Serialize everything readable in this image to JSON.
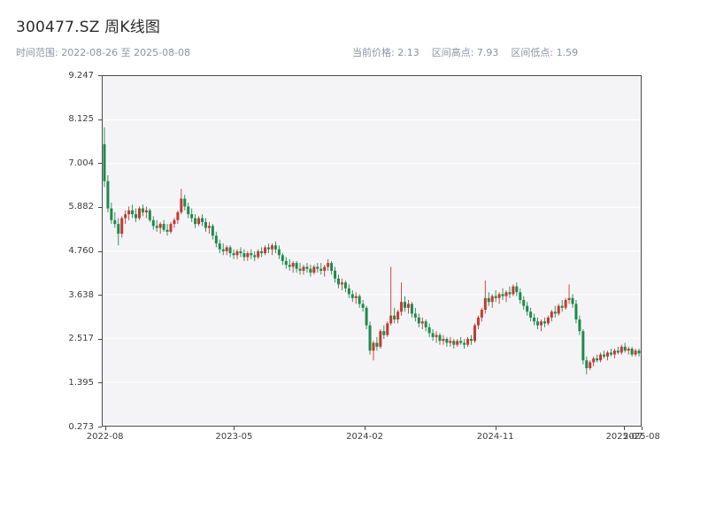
{
  "header": {
    "title": "300477.SZ 周K线图",
    "time_range": "时间范围: 2022-08-26 至 2025-08-08",
    "current_price": "当前价格: 2.13",
    "range_high": "区间高点: 7.93",
    "range_low": "区间低点: 1.59"
  },
  "chart_data": {
    "type": "candlestick",
    "symbol": "300477.SZ",
    "interval": "weekly",
    "title": "300477.SZ 周K线图",
    "date_start": "2022-08-26",
    "date_end": "2025-08-08",
    "current_price": 2.13,
    "range_high": 7.93,
    "range_low": 1.59,
    "y_min": 0.273,
    "y_max": 9.247,
    "up_color": "#c23a32",
    "down_color": "#1f8a4c",
    "background": "#f4f4f6",
    "grid_color": "#ffffff",
    "grid": "horizontal-only",
    "y_ticks": [
      {
        "label": "9.247",
        "value": 9.247
      },
      {
        "label": "8.125",
        "value": 8.125
      },
      {
        "label": "7.004",
        "value": 7.004
      },
      {
        "label": "5.882",
        "value": 5.882
      },
      {
        "label": "4.760",
        "value": 4.76
      },
      {
        "label": "3.638",
        "value": 3.638
      },
      {
        "label": "2.517",
        "value": 2.517
      },
      {
        "label": "1.395",
        "value": 1.395
      },
      {
        "label": "0.273",
        "value": 0.273
      }
    ],
    "x_ticks": [
      {
        "label": "2022-08",
        "pos": 0.006
      },
      {
        "label": "2023-05",
        "pos": 0.245
      },
      {
        "label": "2024-02",
        "pos": 0.487
      },
      {
        "label": "2024-11",
        "pos": 0.729
      },
      {
        "label": "2025-07",
        "pos": 0.968
      },
      {
        "label": "2025-08",
        "pos": 1.0
      }
    ],
    "ohlc_order": [
      "open",
      "high",
      "low",
      "close"
    ],
    "candles": [
      [
        7.5,
        7.93,
        6.4,
        6.55
      ],
      [
        6.55,
        6.7,
        5.75,
        5.85
      ],
      [
        5.85,
        6.0,
        5.45,
        5.55
      ],
      [
        5.55,
        5.75,
        5.35,
        5.45
      ],
      [
        5.45,
        5.6,
        4.9,
        5.2
      ],
      [
        5.2,
        5.65,
        5.1,
        5.6
      ],
      [
        5.6,
        5.8,
        5.45,
        5.7
      ],
      [
        5.7,
        5.9,
        5.55,
        5.8
      ],
      [
        5.8,
        5.95,
        5.6,
        5.7
      ],
      [
        5.7,
        5.85,
        5.5,
        5.6
      ],
      [
        5.6,
        5.9,
        5.55,
        5.85
      ],
      [
        5.85,
        5.95,
        5.65,
        5.75
      ],
      [
        5.75,
        5.9,
        5.6,
        5.8
      ],
      [
        5.8,
        5.85,
        5.5,
        5.55
      ],
      [
        5.55,
        5.65,
        5.3,
        5.4
      ],
      [
        5.4,
        5.55,
        5.25,
        5.35
      ],
      [
        5.35,
        5.5,
        5.2,
        5.45
      ],
      [
        5.45,
        5.55,
        5.25,
        5.3
      ],
      [
        5.3,
        5.45,
        5.15,
        5.25
      ],
      [
        5.25,
        5.5,
        5.2,
        5.45
      ],
      [
        5.45,
        5.6,
        5.35,
        5.55
      ],
      [
        5.55,
        5.8,
        5.45,
        5.75
      ],
      [
        5.75,
        6.35,
        5.7,
        6.1
      ],
      [
        6.1,
        6.2,
        5.8,
        5.9
      ],
      [
        5.9,
        6.0,
        5.6,
        5.7
      ],
      [
        5.7,
        5.85,
        5.5,
        5.6
      ],
      [
        5.6,
        5.7,
        5.35,
        5.45
      ],
      [
        5.45,
        5.65,
        5.4,
        5.6
      ],
      [
        5.6,
        5.7,
        5.4,
        5.5
      ],
      [
        5.5,
        5.6,
        5.25,
        5.35
      ],
      [
        5.35,
        5.5,
        5.2,
        5.4
      ],
      [
        5.4,
        5.45,
        5.05,
        5.15
      ],
      [
        5.15,
        5.25,
        4.85,
        4.95
      ],
      [
        4.95,
        5.05,
        4.7,
        4.8
      ],
      [
        4.8,
        4.95,
        4.65,
        4.75
      ],
      [
        4.75,
        4.9,
        4.65,
        4.85
      ],
      [
        4.85,
        4.9,
        4.6,
        4.7
      ],
      [
        4.7,
        4.8,
        4.55,
        4.65
      ],
      [
        4.65,
        4.8,
        4.55,
        4.75
      ],
      [
        4.75,
        4.85,
        4.6,
        4.7
      ],
      [
        4.7,
        4.8,
        4.5,
        4.6
      ],
      [
        4.6,
        4.75,
        4.5,
        4.7
      ],
      [
        4.7,
        4.8,
        4.55,
        4.65
      ],
      [
        4.65,
        4.75,
        4.5,
        4.6
      ],
      [
        4.6,
        4.8,
        4.55,
        4.75
      ],
      [
        4.75,
        4.85,
        4.6,
        4.7
      ],
      [
        4.7,
        4.9,
        4.65,
        4.85
      ],
      [
        4.85,
        4.95,
        4.7,
        4.8
      ],
      [
        4.8,
        4.95,
        4.65,
        4.9
      ],
      [
        4.9,
        5.0,
        4.7,
        4.8
      ],
      [
        4.8,
        4.9,
        4.55,
        4.65
      ],
      [
        4.65,
        4.7,
        4.4,
        4.5
      ],
      [
        4.5,
        4.6,
        4.3,
        4.4
      ],
      [
        4.4,
        4.55,
        4.25,
        4.35
      ],
      [
        4.35,
        4.5,
        4.2,
        4.45
      ],
      [
        4.45,
        4.5,
        4.2,
        4.3
      ],
      [
        4.3,
        4.45,
        4.15,
        4.25
      ],
      [
        4.25,
        4.4,
        4.15,
        4.35
      ],
      [
        4.35,
        4.45,
        4.2,
        4.3
      ],
      [
        4.3,
        4.4,
        4.1,
        4.2
      ],
      [
        4.2,
        4.4,
        4.15,
        4.35
      ],
      [
        4.35,
        4.45,
        4.2,
        4.3
      ],
      [
        4.3,
        4.45,
        4.15,
        4.25
      ],
      [
        4.25,
        4.4,
        4.1,
        4.35
      ],
      [
        4.35,
        4.55,
        4.25,
        4.45
      ],
      [
        4.45,
        4.5,
        4.15,
        4.25
      ],
      [
        4.25,
        4.35,
        3.95,
        4.05
      ],
      [
        4.05,
        4.15,
        3.8,
        3.9
      ],
      [
        3.9,
        4.05,
        3.75,
        3.95
      ],
      [
        3.95,
        4.0,
        3.7,
        3.8
      ],
      [
        3.8,
        3.9,
        3.55,
        3.65
      ],
      [
        3.65,
        3.75,
        3.45,
        3.55
      ],
      [
        3.55,
        3.7,
        3.4,
        3.6
      ],
      [
        3.6,
        3.65,
        3.3,
        3.4
      ],
      [
        3.4,
        3.5,
        3.2,
        3.3
      ],
      [
        3.3,
        3.35,
        2.75,
        2.85
      ],
      [
        2.85,
        2.95,
        2.1,
        2.2
      ],
      [
        2.2,
        2.45,
        1.95,
        2.4
      ],
      [
        2.4,
        2.55,
        2.2,
        2.3
      ],
      [
        2.3,
        2.75,
        2.25,
        2.7
      ],
      [
        2.7,
        2.85,
        2.5,
        2.6
      ],
      [
        2.6,
        2.95,
        2.55,
        2.9
      ],
      [
        2.9,
        4.35,
        2.85,
        3.1
      ],
      [
        3.1,
        3.3,
        2.9,
        3.0
      ],
      [
        3.0,
        3.25,
        2.9,
        3.2
      ],
      [
        3.2,
        3.95,
        3.1,
        3.45
      ],
      [
        3.45,
        3.6,
        3.2,
        3.3
      ],
      [
        3.3,
        3.5,
        3.15,
        3.4
      ],
      [
        3.4,
        3.45,
        3.05,
        3.15
      ],
      [
        3.15,
        3.3,
        2.95,
        3.05
      ],
      [
        3.05,
        3.15,
        2.8,
        2.9
      ],
      [
        2.9,
        3.05,
        2.75,
        2.95
      ],
      [
        2.95,
        3.0,
        2.7,
        2.8
      ],
      [
        2.8,
        2.9,
        2.55,
        2.65
      ],
      [
        2.65,
        2.75,
        2.45,
        2.55
      ],
      [
        2.55,
        2.7,
        2.4,
        2.6
      ],
      [
        2.6,
        2.65,
        2.35,
        2.45
      ],
      [
        2.45,
        2.6,
        2.35,
        2.5
      ],
      [
        2.5,
        2.55,
        2.3,
        2.4
      ],
      [
        2.4,
        2.55,
        2.3,
        2.45
      ],
      [
        2.45,
        2.5,
        2.25,
        2.35
      ],
      [
        2.35,
        2.5,
        2.3,
        2.45
      ],
      [
        2.45,
        2.55,
        2.35,
        2.4
      ],
      [
        2.4,
        2.5,
        2.25,
        2.35
      ],
      [
        2.35,
        2.55,
        2.3,
        2.5
      ],
      [
        2.5,
        2.6,
        2.35,
        2.45
      ],
      [
        2.45,
        2.9,
        2.4,
        2.85
      ],
      [
        2.85,
        3.1,
        2.75,
        3.05
      ],
      [
        3.05,
        3.3,
        2.95,
        3.25
      ],
      [
        3.25,
        4.0,
        3.15,
        3.55
      ],
      [
        3.55,
        3.7,
        3.35,
        3.45
      ],
      [
        3.45,
        3.65,
        3.3,
        3.6
      ],
      [
        3.6,
        3.75,
        3.45,
        3.55
      ],
      [
        3.55,
        3.7,
        3.4,
        3.65
      ],
      [
        3.65,
        3.8,
        3.5,
        3.6
      ],
      [
        3.6,
        3.75,
        3.45,
        3.7
      ],
      [
        3.7,
        3.85,
        3.55,
        3.65
      ],
      [
        3.65,
        3.9,
        3.6,
        3.85
      ],
      [
        3.85,
        3.95,
        3.6,
        3.7
      ],
      [
        3.7,
        3.8,
        3.4,
        3.5
      ],
      [
        3.5,
        3.6,
        3.25,
        3.35
      ],
      [
        3.35,
        3.45,
        3.1,
        3.2
      ],
      [
        3.2,
        3.3,
        2.95,
        3.05
      ],
      [
        3.05,
        3.15,
        2.85,
        2.95
      ],
      [
        2.95,
        3.05,
        2.75,
        2.85
      ],
      [
        2.85,
        3.0,
        2.7,
        2.95
      ],
      [
        2.95,
        3.05,
        2.8,
        2.9
      ],
      [
        2.9,
        3.1,
        2.85,
        3.05
      ],
      [
        3.05,
        3.25,
        2.95,
        3.2
      ],
      [
        3.2,
        3.35,
        3.05,
        3.15
      ],
      [
        3.15,
        3.4,
        3.1,
        3.35
      ],
      [
        3.35,
        3.5,
        3.2,
        3.3
      ],
      [
        3.3,
        3.55,
        3.25,
        3.5
      ],
      [
        3.5,
        3.9,
        3.4,
        3.55
      ],
      [
        3.55,
        3.65,
        3.3,
        3.4
      ],
      [
        3.4,
        3.5,
        2.9,
        3.0
      ],
      [
        3.0,
        3.1,
        2.6,
        2.7
      ],
      [
        2.7,
        2.75,
        1.85,
        1.95
      ],
      [
        1.95,
        2.05,
        1.59,
        1.75
      ],
      [
        1.75,
        1.95,
        1.7,
        1.9
      ],
      [
        1.9,
        2.05,
        1.8,
        2.0
      ],
      [
        2.0,
        2.1,
        1.9,
        1.95
      ],
      [
        1.95,
        2.15,
        1.9,
        2.1
      ],
      [
        2.1,
        2.2,
        2.0,
        2.05
      ],
      [
        2.05,
        2.2,
        1.95,
        2.15
      ],
      [
        2.15,
        2.25,
        2.05,
        2.1
      ],
      [
        2.1,
        2.25,
        2.0,
        2.2
      ],
      [
        2.2,
        2.3,
        2.1,
        2.15
      ],
      [
        2.15,
        2.35,
        2.1,
        2.3
      ],
      [
        2.3,
        2.4,
        2.15,
        2.2
      ],
      [
        2.2,
        2.3,
        2.1,
        2.25
      ],
      [
        2.25,
        2.3,
        2.05,
        2.1
      ],
      [
        2.1,
        2.25,
        2.05,
        2.2
      ],
      [
        2.2,
        2.25,
        2.05,
        2.13
      ]
    ]
  }
}
